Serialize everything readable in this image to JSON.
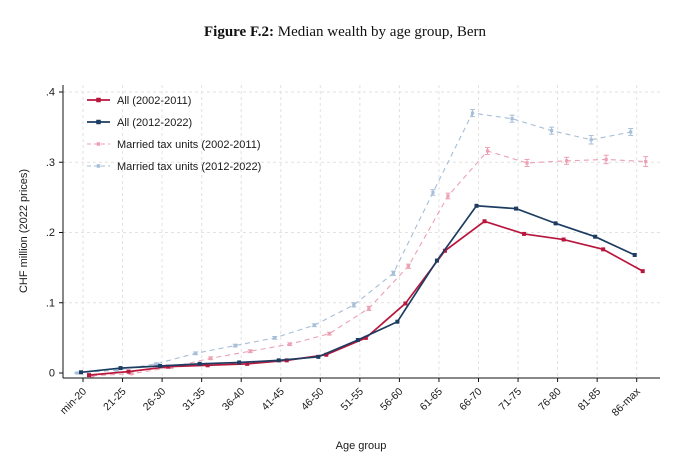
{
  "title": {
    "prefix": "Figure F.2:",
    "text": " Median wealth by age group, Bern"
  },
  "chart_data": {
    "type": "line",
    "title": "Figure F.2: Median wealth by age group, Bern",
    "xlabel": "Age group",
    "ylabel": "CHF million (2022 prices)",
    "ylim": [
      0,
      0.4
    ],
    "yticks": [
      0,
      0.1,
      0.2,
      0.3,
      0.4
    ],
    "ytick_labels": [
      "0",
      ".1",
      ".2",
      ".3",
      ".4"
    ],
    "grid": "both-dashed",
    "legend_position": "top-left-inside",
    "categories": [
      "min-20",
      "21-25",
      "26-30",
      "31-35",
      "36-40",
      "41-45",
      "46-50",
      "51-55",
      "56-60",
      "61-65",
      "66-70",
      "71-75",
      "76-80",
      "81-85",
      "86-max"
    ],
    "series": [
      {
        "name": "All (2002-2011)",
        "color": "#b8173d",
        "style": "solid",
        "marker": "square",
        "x_offset": 6,
        "values": [
          -0.003,
          0.002,
          0.009,
          0.011,
          0.013,
          0.018,
          0.026,
          0.05,
          0.099,
          0.174,
          0.216,
          0.198,
          0.19,
          0.176,
          0.145
        ]
      },
      {
        "name": "All (2012-2022)",
        "color": "#1c3d61",
        "style": "solid",
        "marker": "square",
        "x_offset": -2,
        "values": [
          0.001,
          0.007,
          0.01,
          0.013,
          0.015,
          0.018,
          0.023,
          0.047,
          0.073,
          0.16,
          0.238,
          0.234,
          0.213,
          0.194,
          0.168
        ]
      },
      {
        "name": "Married tax units (2002-2011)",
        "color": "#eca0b4",
        "style": "dashed",
        "marker": "square",
        "x_offset": 9,
        "values": [
          -0.004,
          -0.001,
          0.008,
          0.021,
          0.031,
          0.041,
          0.056,
          0.092,
          0.152,
          0.252,
          0.316,
          0.299,
          0.302,
          0.304,
          0.301
        ],
        "errors": [
          0.001,
          0.001,
          0.001,
          0.002,
          0.002,
          0.002,
          0.002,
          0.003,
          0.003,
          0.004,
          0.005,
          0.005,
          0.005,
          0.006,
          0.007
        ]
      },
      {
        "name": "Married tax units (2012-2022)",
        "color": "#a6bed8",
        "style": "dashed",
        "marker": "square",
        "x_offset": -6,
        "values": [
          0.0,
          0.004,
          0.013,
          0.028,
          0.039,
          0.05,
          0.068,
          0.097,
          0.142,
          0.257,
          0.37,
          0.362,
          0.345,
          0.332,
          0.343
        ],
        "errors": [
          0.001,
          0.001,
          0.001,
          0.002,
          0.002,
          0.002,
          0.002,
          0.003,
          0.003,
          0.004,
          0.005,
          0.005,
          0.005,
          0.006,
          0.005
        ]
      }
    ]
  },
  "colors": {
    "grid": "#e2e2e2",
    "axis": "#111111",
    "text": "#1a1a1a"
  }
}
